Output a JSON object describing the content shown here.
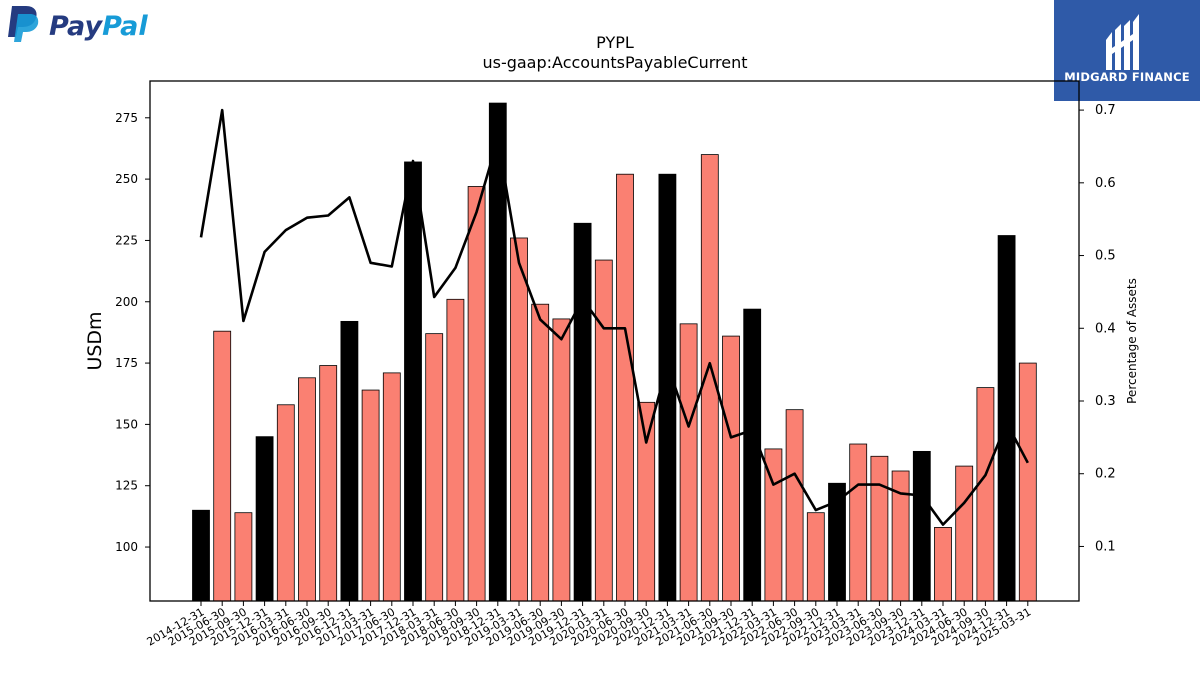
{
  "logos": {
    "paypal": "PayPal",
    "midgard": "MIDGARD FINANCE"
  },
  "colors": {
    "bar_normal": "#fa8072",
    "bar_highlight": "#000000",
    "line": "#000000",
    "paypal_dark": "#253b80",
    "paypal_light": "#179bd7",
    "midgard_bg": "#2f5aa8"
  },
  "chart_data": {
    "type": "bar",
    "title": "PYPL",
    "subtitle": "us-gaap:AccountsPayableCurrent",
    "ylabel": "USDm",
    "y2label": "Percentage of Assets",
    "ylim": [
      78,
      290
    ],
    "y2lim": [
      0.025,
      0.74
    ],
    "yticks": [
      100,
      125,
      150,
      175,
      200,
      225,
      250,
      275
    ],
    "y2ticks": [
      0.1,
      0.2,
      0.3,
      0.4,
      0.5,
      0.6,
      0.7
    ],
    "categories": [
      "2014-12-31",
      "2015-06-30",
      "2015-09-30",
      "2015-12-31",
      "2016-03-31",
      "2016-06-30",
      "2016-09-30",
      "2016-12-31",
      "2017-03-31",
      "2017-06-30",
      "2017-12-31",
      "2018-03-31",
      "2018-06-30",
      "2018-09-30",
      "2018-12-31",
      "2019-03-31",
      "2019-06-30",
      "2019-09-30",
      "2019-12-31",
      "2020-03-31",
      "2020-06-30",
      "2020-09-30",
      "2020-12-31",
      "2021-03-31",
      "2021-06-30",
      "2021-09-30",
      "2021-12-31",
      "2022-03-31",
      "2022-06-30",
      "2022-09-30",
      "2022-12-31",
      "2023-03-31",
      "2023-06-30",
      "2023-09-30",
      "2023-12-31",
      "2024-03-31",
      "2024-06-30",
      "2024-09-30",
      "2024-12-31",
      "2025-03-31"
    ],
    "highlight": [
      true,
      false,
      false,
      true,
      false,
      false,
      false,
      true,
      false,
      false,
      true,
      false,
      false,
      false,
      true,
      false,
      false,
      false,
      true,
      false,
      false,
      false,
      true,
      false,
      false,
      false,
      true,
      false,
      false,
      false,
      true,
      false,
      false,
      false,
      true,
      false,
      false,
      false,
      true,
      false
    ],
    "series": [
      {
        "values": [
          115,
          188,
          114,
          145,
          158,
          169,
          174,
          192,
          164,
          171,
          257,
          187,
          201,
          247,
          281,
          226,
          199,
          193,
          232,
          217,
          252,
          159,
          252,
          191,
          260,
          186,
          197,
          140,
          156,
          114,
          126,
          142,
          137,
          131,
          139,
          108,
          133,
          165,
          227,
          175
        ]
      },
      {
        "axis": "right",
        "values": [
          0.525,
          0.7,
          0.41,
          0.505,
          0.535,
          0.552,
          0.555,
          0.58,
          0.49,
          0.485,
          0.63,
          0.443,
          0.483,
          0.56,
          0.66,
          0.49,
          0.412,
          0.385,
          0.44,
          0.4,
          0.4,
          0.243,
          0.35,
          0.265,
          0.352,
          0.25,
          0.26,
          0.185,
          0.2,
          0.15,
          0.162,
          0.185,
          0.185,
          0.173,
          0.17,
          0.13,
          0.16,
          0.198,
          0.27,
          0.215
        ]
      }
    ],
    "grid": false,
    "legend": "none"
  }
}
